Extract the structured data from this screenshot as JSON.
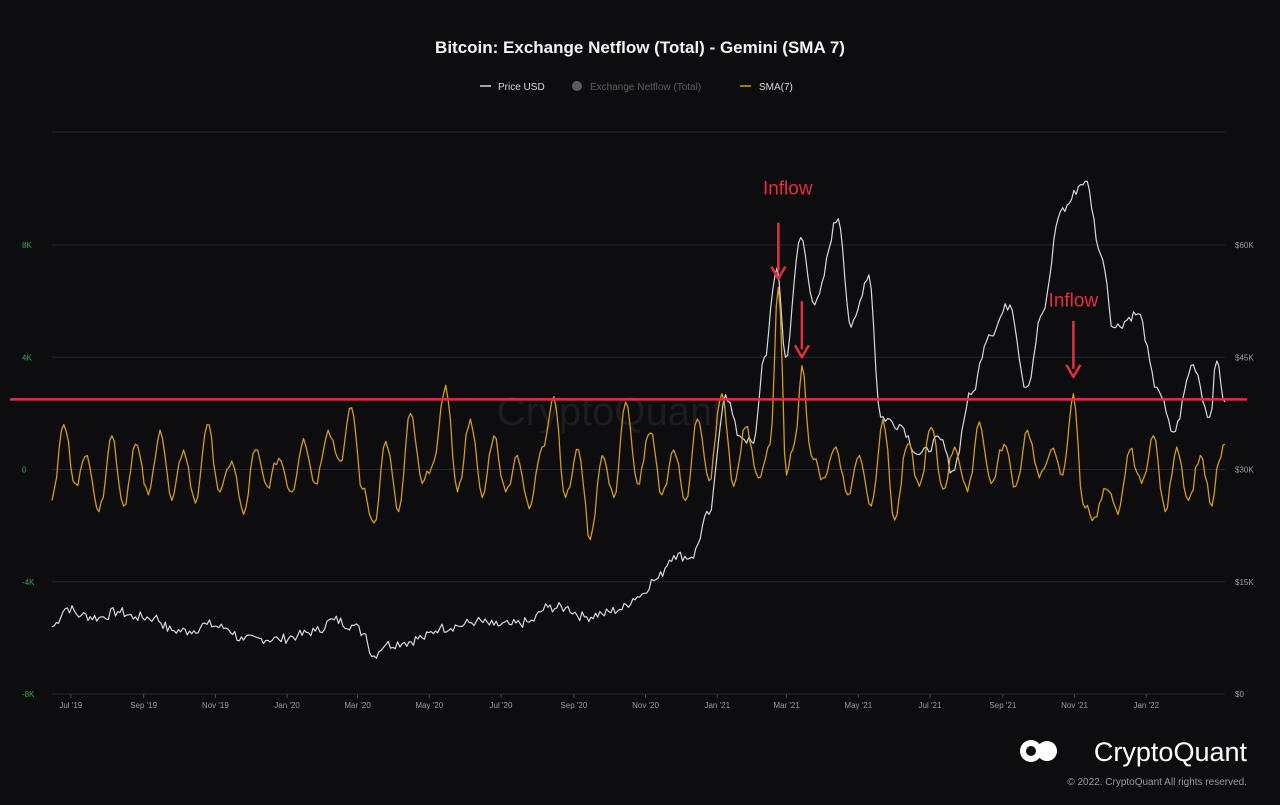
{
  "chart_data": {
    "type": "line",
    "title": "Bitcoin: Exchange Netflow (Total) - Gemini (SMA 7)",
    "legend": [
      {
        "label": "Price USD",
        "color": "#d8d8d8",
        "marker": "line",
        "active": true
      },
      {
        "label": "Exchange Netflow (Total)",
        "color": "#5a5a64",
        "marker": "dot",
        "active": false
      },
      {
        "label": "SMA(7)",
        "color": "#d49a1a",
        "marker": "line",
        "active": true
      }
    ],
    "legend_placement": "top-center",
    "grid": true,
    "x_ticks": [
      "Jul '19",
      "Sep '19",
      "Nov '19",
      "Jan '20",
      "Mar '20",
      "May '20",
      "Jul '20",
      "Sep '20",
      "Nov '20",
      "Jan '21",
      "Mar '21",
      "May '21",
      "Jul '21",
      "Sep '21",
      "Nov '21",
      "Jan '22"
    ],
    "y_left": {
      "ticks": [
        "8K",
        "4K",
        "0",
        "-4K",
        "-8K"
      ],
      "range": [
        -8000,
        8000
      ]
    },
    "y_right": {
      "ticks": [
        "$60K",
        "$45K",
        "$30K",
        "$15K",
        "$0"
      ],
      "range": [
        0,
        60000
      ]
    },
    "x_range": [
      "2019-06-15",
      "2022-03-09"
    ],
    "series": [
      {
        "name": "Price USD",
        "axis": "right",
        "color": "#d8d8d8",
        "points": [
          [
            "2019-06-15",
            9000
          ],
          [
            "2019-06-28",
            11500
          ],
          [
            "2019-07-10",
            10500
          ],
          [
            "2019-07-25",
            10200
          ],
          [
            "2019-08-10",
            11000
          ],
          [
            "2019-08-25",
            10300
          ],
          [
            "2019-09-10",
            10200
          ],
          [
            "2019-09-25",
            8500
          ],
          [
            "2019-10-10",
            8400
          ],
          [
            "2019-10-25",
            9300
          ],
          [
            "2019-11-10",
            8800
          ],
          [
            "2019-11-25",
            7200
          ],
          [
            "2019-12-10",
            7400
          ],
          [
            "2019-12-25",
            7300
          ],
          [
            "2020-01-10",
            7800
          ],
          [
            "2020-01-25",
            8400
          ],
          [
            "2020-02-10",
            9900
          ],
          [
            "2020-02-25",
            9200
          ],
          [
            "2020-03-08",
            8000
          ],
          [
            "2020-03-13",
            5000
          ],
          [
            "2020-03-25",
            6600
          ],
          [
            "2020-04-10",
            6900
          ],
          [
            "2020-04-25",
            7500
          ],
          [
            "2020-05-10",
            8800
          ],
          [
            "2020-05-25",
            9100
          ],
          [
            "2020-06-10",
            9700
          ],
          [
            "2020-06-25",
            9200
          ],
          [
            "2020-07-10",
            9250
          ],
          [
            "2020-07-25",
            9600
          ],
          [
            "2020-08-10",
            11600
          ],
          [
            "2020-08-25",
            11500
          ],
          [
            "2020-09-10",
            10300
          ],
          [
            "2020-09-25",
            10700
          ],
          [
            "2020-10-10",
            11300
          ],
          [
            "2020-10-25",
            13000
          ],
          [
            "2020-11-10",
            15300
          ],
          [
            "2020-11-25",
            18500
          ],
          [
            "2020-12-10",
            18300
          ],
          [
            "2020-12-25",
            24000
          ],
          [
            "2021-01-08",
            40000
          ],
          [
            "2021-01-20",
            34500
          ],
          [
            "2021-02-01",
            33500
          ],
          [
            "2021-02-10",
            45000
          ],
          [
            "2021-02-21",
            57000
          ],
          [
            "2021-02-28",
            45000
          ],
          [
            "2021-03-13",
            61000
          ],
          [
            "2021-03-25",
            52000
          ],
          [
            "2021-04-14",
            63500
          ],
          [
            "2021-04-25",
            49000
          ],
          [
            "2021-05-10",
            56000
          ],
          [
            "2021-05-20",
            37000
          ],
          [
            "2021-06-05",
            36000
          ],
          [
            "2021-06-22",
            32000
          ],
          [
            "2021-07-10",
            34000
          ],
          [
            "2021-07-20",
            29800
          ],
          [
            "2021-08-05",
            40000
          ],
          [
            "2021-08-20",
            48000
          ],
          [
            "2021-09-07",
            52000
          ],
          [
            "2021-09-21",
            41000
          ],
          [
            "2021-10-05",
            51000
          ],
          [
            "2021-10-20",
            64500
          ],
          [
            "2021-11-10",
            68500
          ],
          [
            "2021-11-25",
            58000
          ],
          [
            "2021-12-04",
            49000
          ],
          [
            "2021-12-25",
            50800
          ],
          [
            "2022-01-10",
            41000
          ],
          [
            "2022-01-24",
            35000
          ],
          [
            "2022-02-10",
            44000
          ],
          [
            "2022-02-24",
            37000
          ],
          [
            "2022-03-02",
            44500
          ],
          [
            "2022-03-09",
            39000
          ]
        ]
      },
      {
        "name": "SMA(7)",
        "axis": "left",
        "color": "#d49a1a",
        "points": [
          [
            "2019-06-15",
            -1100
          ],
          [
            "2019-06-25",
            1600
          ],
          [
            "2019-07-05",
            -500
          ],
          [
            "2019-07-15",
            500
          ],
          [
            "2019-07-25",
            -1500
          ],
          [
            "2019-08-05",
            1200
          ],
          [
            "2019-08-15",
            -1300
          ],
          [
            "2019-08-25",
            900
          ],
          [
            "2019-09-05",
            -900
          ],
          [
            "2019-09-15",
            1400
          ],
          [
            "2019-09-25",
            -1100
          ],
          [
            "2019-10-05",
            700
          ],
          [
            "2019-10-15",
            -1200
          ],
          [
            "2019-10-25",
            1600
          ],
          [
            "2019-11-05",
            -800
          ],
          [
            "2019-11-15",
            300
          ],
          [
            "2019-11-25",
            -1600
          ],
          [
            "2019-12-05",
            700
          ],
          [
            "2019-12-15",
            -600
          ],
          [
            "2019-12-25",
            400
          ],
          [
            "2020-01-05",
            -800
          ],
          [
            "2020-01-15",
            1100
          ],
          [
            "2020-01-25",
            -500
          ],
          [
            "2020-02-05",
            1400
          ],
          [
            "2020-02-15",
            300
          ],
          [
            "2020-02-25",
            2200
          ],
          [
            "2020-03-05",
            -700
          ],
          [
            "2020-03-15",
            -1900
          ],
          [
            "2020-03-25",
            1000
          ],
          [
            "2020-04-05",
            -1500
          ],
          [
            "2020-04-15",
            2000
          ],
          [
            "2020-04-25",
            -500
          ],
          [
            "2020-05-05",
            300
          ],
          [
            "2020-05-15",
            3000
          ],
          [
            "2020-05-25",
            -800
          ],
          [
            "2020-06-05",
            1800
          ],
          [
            "2020-06-15",
            -1000
          ],
          [
            "2020-06-25",
            1200
          ],
          [
            "2020-07-05",
            -800
          ],
          [
            "2020-07-15",
            500
          ],
          [
            "2020-07-25",
            -1400
          ],
          [
            "2020-08-05",
            800
          ],
          [
            "2020-08-15",
            2600
          ],
          [
            "2020-08-25",
            -1000
          ],
          [
            "2020-09-05",
            700
          ],
          [
            "2020-09-15",
            -2500
          ],
          [
            "2020-09-25",
            500
          ],
          [
            "2020-10-05",
            -1000
          ],
          [
            "2020-10-15",
            2400
          ],
          [
            "2020-10-25",
            -500
          ],
          [
            "2020-11-05",
            1300
          ],
          [
            "2020-11-15",
            -900
          ],
          [
            "2020-11-25",
            700
          ],
          [
            "2020-12-05",
            -1100
          ],
          [
            "2020-12-15",
            1800
          ],
          [
            "2020-12-25",
            -400
          ],
          [
            "2021-01-05",
            2700
          ],
          [
            "2021-01-15",
            -600
          ],
          [
            "2021-01-25",
            1500
          ],
          [
            "2021-02-05",
            -300
          ],
          [
            "2021-02-15",
            900
          ],
          [
            "2021-02-22",
            6500
          ],
          [
            "2021-03-01",
            -200
          ],
          [
            "2021-03-08",
            1000
          ],
          [
            "2021-03-14",
            3700
          ],
          [
            "2021-03-22",
            500
          ],
          [
            "2021-04-01",
            -300
          ],
          [
            "2021-04-12",
            800
          ],
          [
            "2021-04-22",
            -900
          ],
          [
            "2021-05-02",
            500
          ],
          [
            "2021-05-12",
            -1300
          ],
          [
            "2021-05-22",
            1800
          ],
          [
            "2021-06-01",
            -1800
          ],
          [
            "2021-06-12",
            900
          ],
          [
            "2021-06-22",
            -600
          ],
          [
            "2021-07-02",
            1500
          ],
          [
            "2021-07-12",
            -700
          ],
          [
            "2021-07-22",
            800
          ],
          [
            "2021-08-02",
            -800
          ],
          [
            "2021-08-12",
            1700
          ],
          [
            "2021-08-22",
            -500
          ],
          [
            "2021-09-02",
            900
          ],
          [
            "2021-09-12",
            -600
          ],
          [
            "2021-09-22",
            1400
          ],
          [
            "2021-10-02",
            -300
          ],
          [
            "2021-10-12",
            700
          ],
          [
            "2021-10-22",
            -200
          ],
          [
            "2021-10-31",
            2700
          ],
          [
            "2021-11-08",
            -1200
          ],
          [
            "2021-11-18",
            -1700
          ],
          [
            "2021-11-28",
            -700
          ],
          [
            "2021-12-08",
            -1600
          ],
          [
            "2021-12-18",
            700
          ],
          [
            "2021-12-28",
            -500
          ],
          [
            "2022-01-07",
            1200
          ],
          [
            "2022-01-17",
            -1500
          ],
          [
            "2022-01-27",
            800
          ],
          [
            "2022-02-06",
            -1100
          ],
          [
            "2022-02-16",
            500
          ],
          [
            "2022-02-26",
            -1300
          ],
          [
            "2022-03-04",
            300
          ],
          [
            "2022-03-09",
            900
          ]
        ]
      }
    ],
    "threshold_line": {
      "value": 2500,
      "axis": "left",
      "color": "#e0303e"
    },
    "annotations": [
      {
        "text": "Inflow",
        "at": [
          "2021-03-02",
          9800
        ]
      },
      {
        "text": "Inflow",
        "at": [
          "2021-10-31",
          5800
        ]
      }
    ],
    "arrows": [
      {
        "at": [
          "2021-02-22",
          6800
        ]
      },
      {
        "at": [
          "2021-03-14",
          4000
        ]
      },
      {
        "at": [
          "2021-10-31",
          3300
        ]
      }
    ],
    "watermark": "CryptoQuant"
  },
  "footer": {
    "brand": "CryptoQuant",
    "copyright": "© 2022. CryptoQuant All rights reserved."
  }
}
